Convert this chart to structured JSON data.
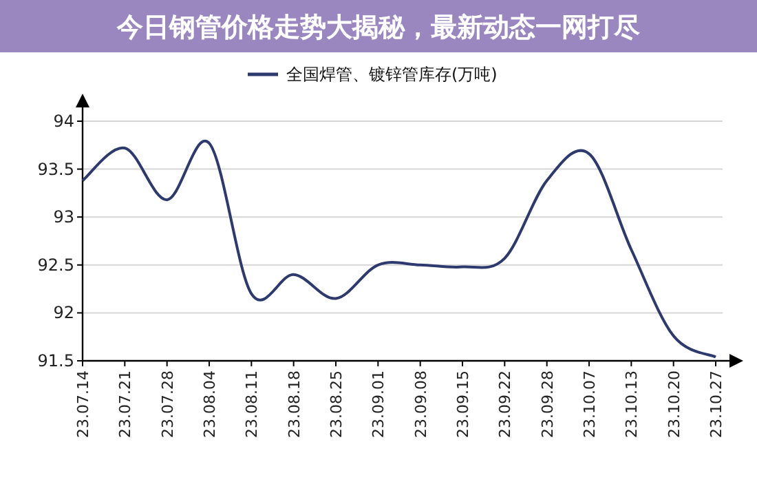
{
  "chart_data": {
    "type": "line",
    "title": "今日钢管价格走势大揭秘，最新动态一网打尽",
    "categories": [
      "23.07.14",
      "23.07.21",
      "23.07.28",
      "23.08.04",
      "23.08.11",
      "23.08.18",
      "23.08.25",
      "23.09.01",
      "23.09.08",
      "23.09.15",
      "23.09.22",
      "23.09.28",
      "23.10.07",
      "23.10.13",
      "23.10.20",
      "23.10.27"
    ],
    "series": [
      {
        "name": "全国焊管、镀锌管库存(万吨)",
        "color": "#2e3a6e",
        "values": [
          93.38,
          93.72,
          93.18,
          93.77,
          92.2,
          92.4,
          92.15,
          92.5,
          92.5,
          92.48,
          92.57,
          93.38,
          93.66,
          92.66,
          91.76,
          91.54
        ]
      }
    ],
    "ylim": [
      91.5,
      94
    ],
    "yticks": [
      91.5,
      92,
      92.5,
      93,
      93.5,
      94
    ],
    "grid": "y",
    "legend": "top",
    "marker": "none",
    "line_style": "solid"
  }
}
